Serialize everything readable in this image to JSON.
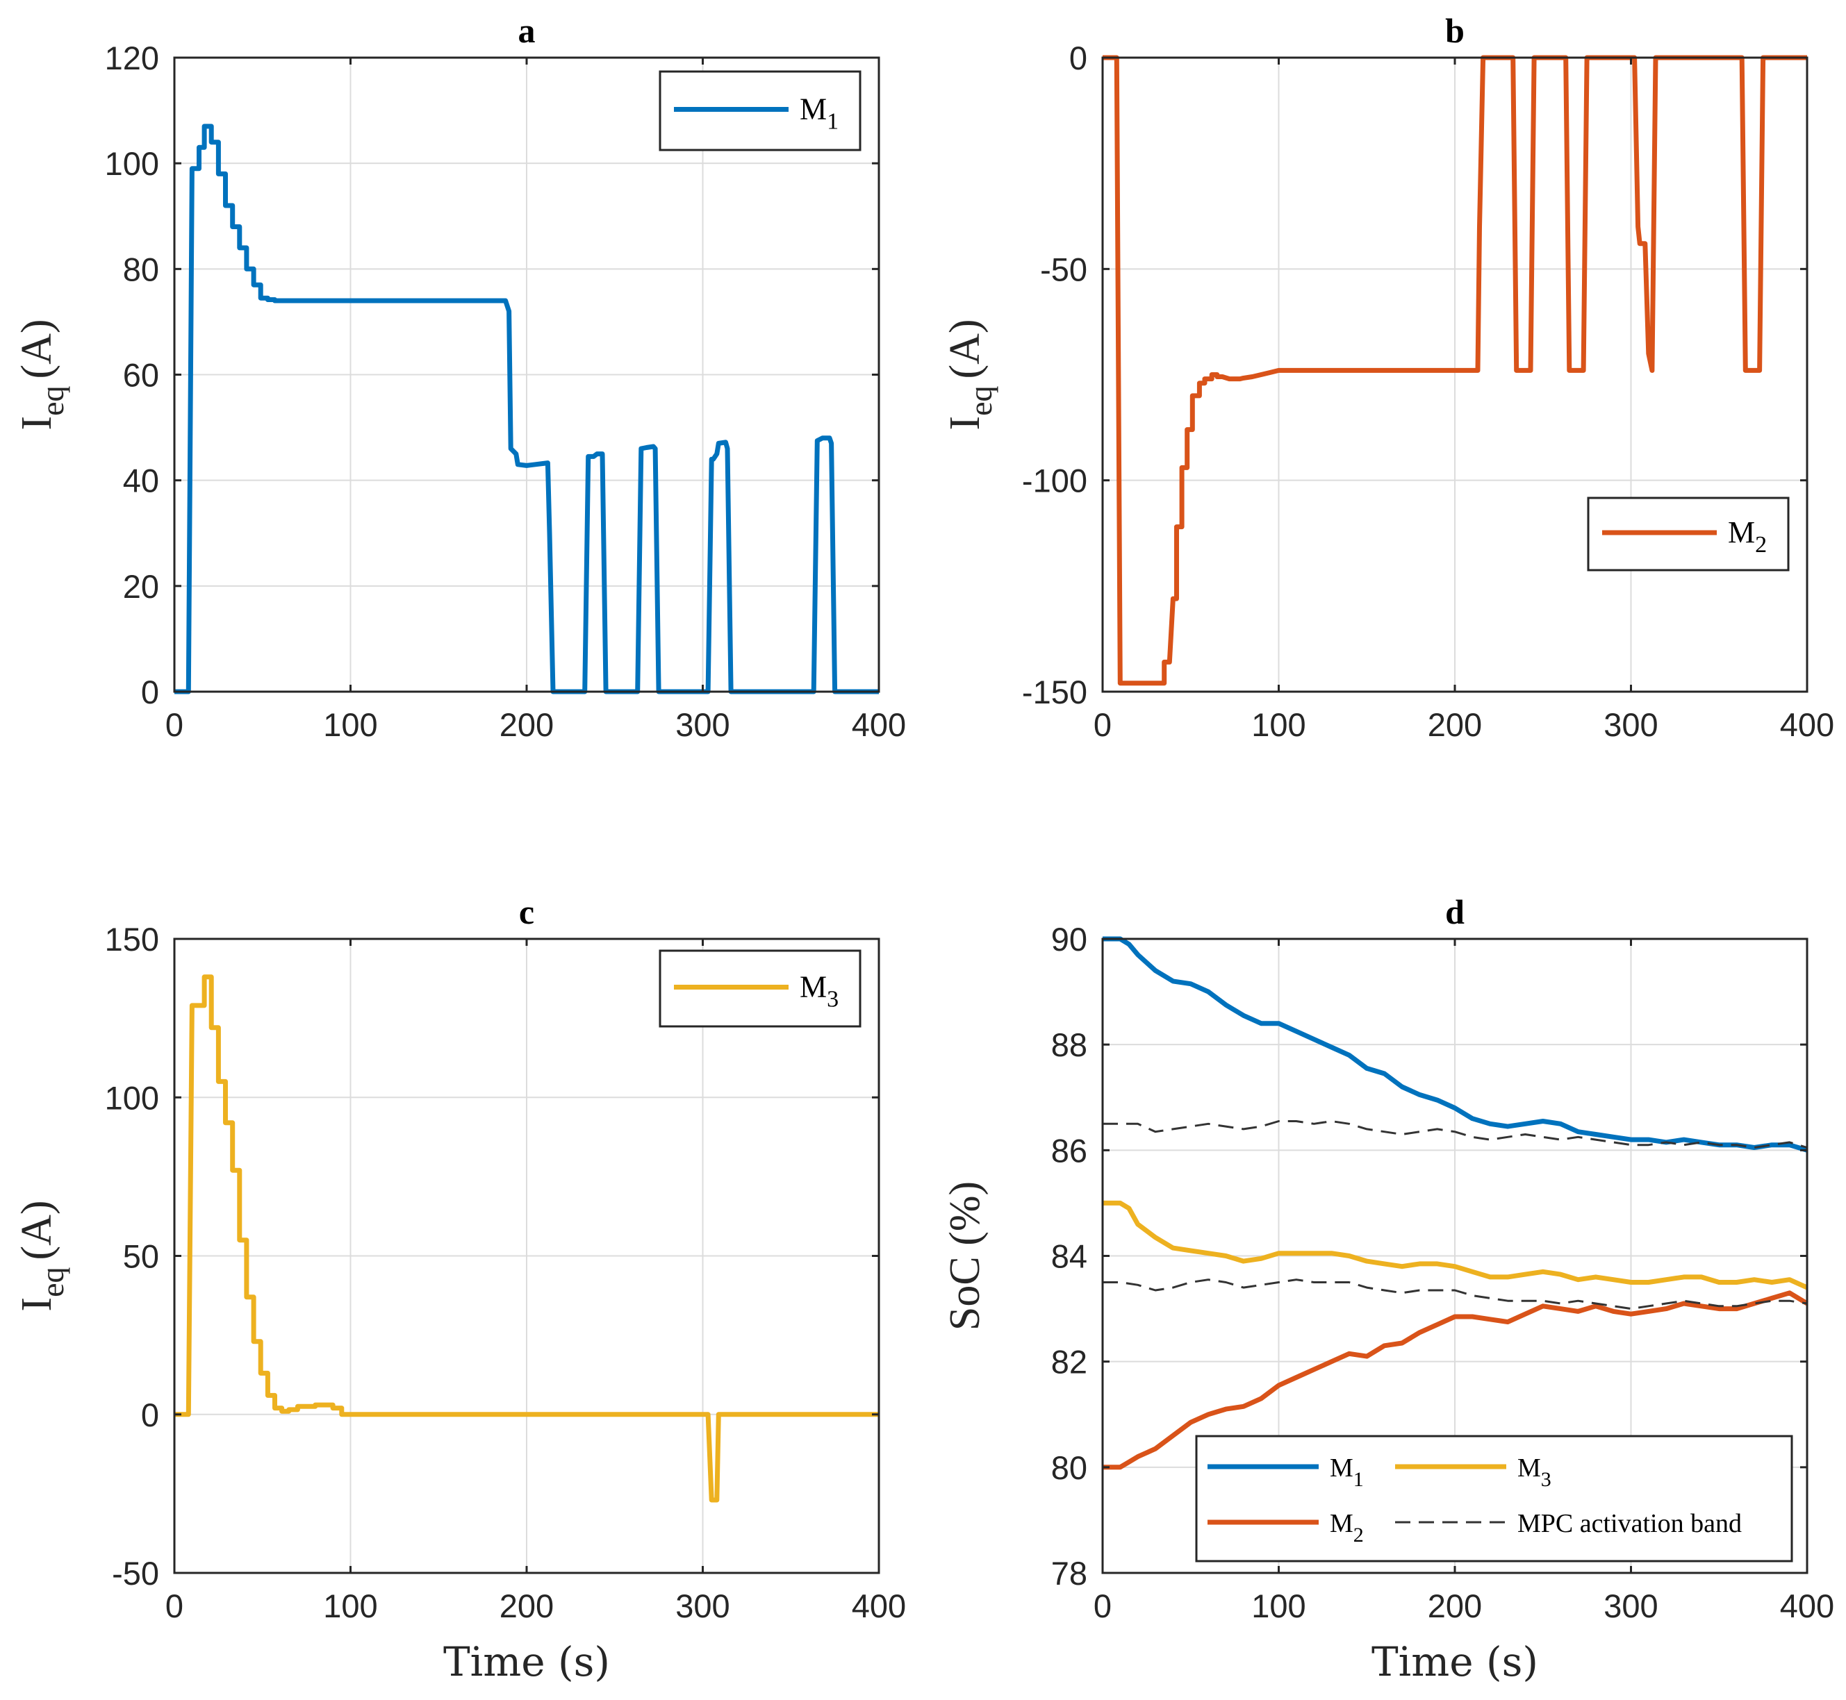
{
  "chart_data": [
    {
      "id": "a",
      "type": "line",
      "title": "a",
      "xlabel": "",
      "ylabel_main": "I",
      "ylabel_sub": "eq",
      "ylabel_unit": "(A)",
      "xlim": [
        0,
        400
      ],
      "ylim": [
        0,
        120
      ],
      "xticks": [
        "0",
        "100",
        "200",
        "300",
        "400"
      ],
      "yticks": [
        "0",
        "20",
        "40",
        "60",
        "80",
        "100",
        "120"
      ],
      "grid": true,
      "legend_position": "top-right",
      "series": [
        {
          "name": "M1",
          "label_main": "M",
          "label_sub": "1",
          "color": "#0072BD",
          "dashed": false,
          "x": [
            0,
            8,
            10,
            12,
            14,
            14,
            17,
            17,
            21,
            21,
            25,
            25,
            29,
            29,
            33,
            33,
            37,
            37,
            41,
            41,
            45,
            45,
            49,
            49,
            53,
            53,
            57,
            57,
            60,
            188,
            190,
            191,
            194,
            195,
            200,
            205,
            212,
            213,
            215,
            233,
            235,
            238,
            240,
            243,
            245,
            263,
            265,
            268,
            272,
            273,
            275,
            303,
            305,
            306,
            308,
            309,
            313,
            314,
            316,
            363,
            365,
            368,
            372,
            373,
            375,
            400
          ],
          "y": [
            0,
            0,
            99,
            99,
            99,
            103,
            103,
            107,
            107,
            104,
            104,
            98,
            98,
            92,
            92,
            88,
            88,
            84,
            84,
            80,
            80,
            77,
            77,
            74.5,
            74.5,
            74.2,
            74.2,
            74,
            74,
            74,
            72,
            46,
            45,
            43,
            42.8,
            43,
            43.3,
            30,
            0,
            0,
            44.5,
            44.5,
            45,
            45,
            0,
            0,
            46,
            46.2,
            46.4,
            46,
            0,
            0,
            44,
            44,
            45,
            47,
            47.2,
            46,
            0,
            0,
            47.5,
            48,
            48,
            47,
            0,
            0
          ]
        }
      ]
    },
    {
      "id": "b",
      "type": "line",
      "title": "b",
      "xlabel": "",
      "ylabel_main": "I",
      "ylabel_sub": "eq",
      "ylabel_unit": "(A)",
      "xlim": [
        0,
        400
      ],
      "ylim": [
        -150,
        0
      ],
      "xticks": [
        "0",
        "100",
        "200",
        "300",
        "400"
      ],
      "yticks": [
        "-150",
        "-100",
        "-50",
        "0"
      ],
      "grid": true,
      "legend_position": "right",
      "series": [
        {
          "name": "M2",
          "label_main": "M",
          "label_sub": "2",
          "color": "#D95319",
          "dashed": false,
          "x": [
            0,
            8,
            10,
            12,
            35,
            35,
            38,
            40,
            42,
            42,
            45,
            45,
            48,
            48,
            51,
            51,
            55,
            55,
            58,
            58,
            62,
            62,
            65,
            65,
            68,
            72,
            78,
            80,
            85,
            90,
            95,
            100,
            213,
            214,
            216,
            233,
            235,
            243,
            245,
            263,
            265,
            273,
            275,
            302,
            304,
            305,
            308,
            310,
            312,
            314,
            363,
            365,
            373,
            375,
            400
          ],
          "y": [
            0,
            0,
            -148,
            -148,
            -148,
            -143,
            -143,
            -128,
            -128,
            -111,
            -111,
            -97,
            -97,
            -88,
            -88,
            -80,
            -80,
            -77,
            -77,
            -76,
            -76,
            -75,
            -75,
            -75.5,
            -75.5,
            -76,
            -76,
            -75.8,
            -75.5,
            -75,
            -74.5,
            -74,
            -74,
            -40,
            0,
            0,
            -74,
            -74,
            0,
            0,
            -74,
            -74,
            0,
            0,
            -40,
            -44,
            -44,
            -70,
            -74,
            0,
            0,
            -74,
            -74,
            0,
            0
          ]
        }
      ]
    },
    {
      "id": "c",
      "type": "line",
      "title": "c",
      "xlabel": "Time (s)",
      "ylabel_main": "I",
      "ylabel_sub": "eq",
      "ylabel_unit": "(A)",
      "xlim": [
        0,
        400
      ],
      "ylim": [
        -50,
        150
      ],
      "xticks": [
        "0",
        "100",
        "200",
        "300",
        "400"
      ],
      "yticks": [
        "-50",
        "0",
        "50",
        "100",
        "150"
      ],
      "grid": true,
      "legend_position": "top-right",
      "series": [
        {
          "name": "M3",
          "label_main": "M",
          "label_sub": "3",
          "color": "#EDB120",
          "dashed": false,
          "x": [
            0,
            8,
            10,
            12,
            14,
            14,
            17,
            17,
            21,
            21,
            25,
            25,
            29,
            29,
            33,
            33,
            37,
            37,
            41,
            41,
            45,
            45,
            49,
            49,
            53,
            53,
            57,
            57,
            61,
            61,
            65,
            65,
            70,
            70,
            80,
            80,
            90,
            90,
            95,
            95,
            100,
            303,
            305,
            306,
            308,
            309,
            400
          ],
          "y": [
            0,
            0,
            129,
            129,
            129,
            129,
            129,
            138,
            138,
            122,
            122,
            105,
            105,
            92,
            92,
            77,
            77,
            55,
            55,
            37,
            37,
            23,
            23,
            13,
            13,
            6,
            6,
            2,
            2,
            1,
            1,
            1.5,
            1.5,
            2.5,
            2.5,
            3,
            3,
            2,
            2,
            0,
            0,
            0,
            -27,
            -27,
            -27,
            0,
            0
          ]
        }
      ]
    },
    {
      "id": "d",
      "type": "line",
      "title": "d",
      "xlabel": "Time (s)",
      "ylabel_main": "SoC (%)",
      "ylabel_sub": "",
      "ylabel_unit": "",
      "xlim": [
        0,
        400
      ],
      "ylim": [
        78,
        90
      ],
      "xticks": [
        "0",
        "100",
        "200",
        "300",
        "400"
      ],
      "yticks": [
        "78",
        "80",
        "82",
        "84",
        "86",
        "88",
        "90"
      ],
      "grid": true,
      "legend_position": "bottom",
      "series": [
        {
          "name": "M1",
          "label_main": "M",
          "label_sub": "1",
          "color": "#0072BD",
          "dashed": false,
          "x": [
            0,
            10,
            15,
            20,
            30,
            40,
            50,
            60,
            70,
            80,
            90,
            100,
            110,
            120,
            130,
            140,
            150,
            160,
            170,
            180,
            190,
            200,
            210,
            220,
            230,
            240,
            250,
            260,
            270,
            280,
            290,
            300,
            310,
            320,
            330,
            340,
            350,
            360,
            370,
            380,
            390,
            400
          ],
          "y": [
            90,
            90,
            89.9,
            89.7,
            89.4,
            89.2,
            89.15,
            89.0,
            88.75,
            88.55,
            88.4,
            88.4,
            88.25,
            88.1,
            87.95,
            87.8,
            87.55,
            87.45,
            87.2,
            87.05,
            86.95,
            86.8,
            86.6,
            86.5,
            86.45,
            86.5,
            86.55,
            86.5,
            86.35,
            86.3,
            86.25,
            86.2,
            86.2,
            86.15,
            86.2,
            86.15,
            86.1,
            86.1,
            86.05,
            86.1,
            86.1,
            86.0
          ]
        },
        {
          "name": "M2",
          "label_main": "M",
          "label_sub": "2",
          "color": "#D95319",
          "dashed": false,
          "x": [
            0,
            10,
            15,
            20,
            30,
            40,
            50,
            60,
            70,
            80,
            90,
            100,
            110,
            120,
            130,
            140,
            150,
            160,
            170,
            180,
            190,
            200,
            210,
            220,
            230,
            240,
            250,
            260,
            270,
            280,
            290,
            300,
            310,
            320,
            330,
            340,
            350,
            360,
            370,
            380,
            390,
            400
          ],
          "y": [
            80,
            80,
            80.1,
            80.2,
            80.35,
            80.6,
            80.85,
            81.0,
            81.1,
            81.15,
            81.3,
            81.55,
            81.7,
            81.85,
            82.0,
            82.15,
            82.1,
            82.3,
            82.35,
            82.55,
            82.7,
            82.85,
            82.85,
            82.8,
            82.75,
            82.9,
            83.05,
            83.0,
            82.95,
            83.05,
            82.95,
            82.9,
            82.95,
            83.0,
            83.1,
            83.05,
            83.0,
            83.0,
            83.1,
            83.2,
            83.3,
            83.1
          ]
        },
        {
          "name": "M3",
          "label_main": "M",
          "label_sub": "3",
          "color": "#EDB120",
          "dashed": false,
          "x": [
            0,
            10,
            15,
            20,
            30,
            40,
            50,
            60,
            70,
            80,
            90,
            100,
            110,
            120,
            130,
            140,
            150,
            160,
            170,
            180,
            190,
            200,
            210,
            220,
            230,
            240,
            250,
            260,
            270,
            280,
            290,
            300,
            310,
            320,
            330,
            340,
            350,
            360,
            370,
            380,
            390,
            400
          ],
          "y": [
            85,
            85,
            84.9,
            84.6,
            84.35,
            84.15,
            84.1,
            84.05,
            84.0,
            83.9,
            83.95,
            84.05,
            84.05,
            84.05,
            84.05,
            84.0,
            83.9,
            83.85,
            83.8,
            83.85,
            83.85,
            83.8,
            83.7,
            83.6,
            83.6,
            83.65,
            83.7,
            83.65,
            83.55,
            83.6,
            83.55,
            83.5,
            83.5,
            83.55,
            83.6,
            83.6,
            83.5,
            83.5,
            83.55,
            83.5,
            83.55,
            83.4
          ]
        },
        {
          "name": "MPC activation band (upper)",
          "label_main": "MPC activation band",
          "label_sub": "",
          "color": "#333333",
          "dashed": true,
          "x": [
            0,
            10,
            20,
            30,
            40,
            50,
            60,
            70,
            80,
            90,
            100,
            110,
            120,
            130,
            140,
            150,
            160,
            170,
            180,
            190,
            200,
            210,
            220,
            230,
            240,
            250,
            260,
            270,
            280,
            290,
            300,
            310,
            320,
            330,
            340,
            350,
            360,
            370,
            380,
            390,
            400
          ],
          "y": [
            86.5,
            86.5,
            86.5,
            86.35,
            86.4,
            86.45,
            86.5,
            86.45,
            86.4,
            86.45,
            86.55,
            86.55,
            86.5,
            86.55,
            86.5,
            86.4,
            86.35,
            86.3,
            86.35,
            86.4,
            86.35,
            86.25,
            86.2,
            86.25,
            86.3,
            86.25,
            86.2,
            86.25,
            86.2,
            86.15,
            86.1,
            86.1,
            86.15,
            86.1,
            86.15,
            86.1,
            86.1,
            86.05,
            86.1,
            86.15,
            86.05
          ]
        },
        {
          "name": "MPC activation band (lower)",
          "label_main": "",
          "label_sub": "",
          "color": "#333333",
          "dashed": true,
          "x": [
            0,
            10,
            20,
            30,
            40,
            50,
            60,
            70,
            80,
            90,
            100,
            110,
            120,
            130,
            140,
            150,
            160,
            170,
            180,
            190,
            200,
            210,
            220,
            230,
            240,
            250,
            260,
            270,
            280,
            290,
            300,
            310,
            320,
            330,
            340,
            350,
            360,
            370,
            380,
            390,
            400
          ],
          "y": [
            83.5,
            83.5,
            83.45,
            83.35,
            83.4,
            83.5,
            83.55,
            83.5,
            83.4,
            83.45,
            83.5,
            83.55,
            83.5,
            83.5,
            83.5,
            83.4,
            83.35,
            83.3,
            83.35,
            83.35,
            83.35,
            83.25,
            83.2,
            83.15,
            83.15,
            83.15,
            83.1,
            83.15,
            83.1,
            83.05,
            83.0,
            83.05,
            83.1,
            83.15,
            83.1,
            83.05,
            83.05,
            83.1,
            83.15,
            83.15,
            83.1
          ]
        }
      ]
    }
  ]
}
